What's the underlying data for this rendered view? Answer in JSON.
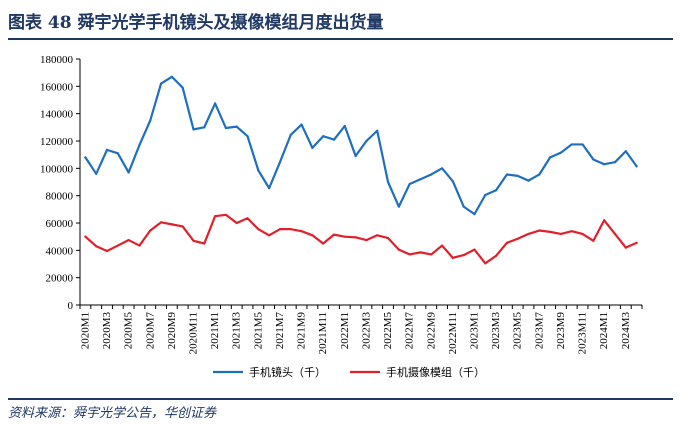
{
  "figure": {
    "title": "图表 48  舜宇光学手机镜头及摄像模组月度出货量",
    "source": "资料来源：舜宇光学公告，华创证券"
  },
  "chart_data": {
    "type": "line",
    "title": "",
    "xlabel": "",
    "ylabel": "",
    "ylim": [
      0,
      180000
    ],
    "yticks": [
      0,
      20000,
      40000,
      60000,
      80000,
      100000,
      120000,
      140000,
      160000,
      180000
    ],
    "grid": false,
    "legend_position": "bottom",
    "x": [
      "2020M1",
      "2020M2",
      "2020M3",
      "2020M4",
      "2020M5",
      "2020M6",
      "2020M7",
      "2020M8",
      "2020M9",
      "2020M10",
      "2020M11",
      "2020M12",
      "2021M1",
      "2021M2",
      "2021M3",
      "2021M4",
      "2021M5",
      "2021M6",
      "2021M7",
      "2021M8",
      "2021M9",
      "2021M10",
      "2021M11",
      "2021M12",
      "2022M1",
      "2022M2",
      "2022M3",
      "2022M4",
      "2022M5",
      "2022M6",
      "2022M7",
      "2022M8",
      "2022M9",
      "2022M10",
      "2022M11",
      "2022M12",
      "2023M1",
      "2023M2",
      "2023M3",
      "2023M4",
      "2023M5",
      "2023M6",
      "2023M7",
      "2023M8",
      "2023M9",
      "2023M10",
      "2023M11",
      "2023M12",
      "2024M1",
      "2024M2",
      "2024M3",
      "2024M4"
    ],
    "x_tick_labels": [
      "2020M1",
      "2020M3",
      "2020M5",
      "2020M7",
      "2020M9",
      "2020M11",
      "2021M1",
      "2021M3",
      "2021M5",
      "2021M7",
      "2021M9",
      "2021M11",
      "2022M1",
      "2022M3",
      "2022M5",
      "2022M7",
      "2022M9",
      "2022M11",
      "2023M1",
      "2023M3",
      "2023M5",
      "2023M7",
      "2023M9",
      "2023M11",
      "2024M1",
      "2024M3"
    ],
    "series": [
      {
        "name": "手机镜头（千）",
        "color": "#1f6fbf",
        "values": [
          108000,
          96000,
          113500,
          111000,
          97000,
          117000,
          135000,
          162000,
          167000,
          159000,
          128500,
          130000,
          147500,
          129500,
          130500,
          123500,
          98500,
          85500,
          104500,
          124500,
          132000,
          115000,
          123500,
          121000,
          131000,
          109000,
          120000,
          127500,
          90000,
          72000,
          88500,
          92000,
          95500,
          100000,
          90500,
          72000,
          66500,
          80500,
          84000,
          95500,
          94500,
          91000,
          95500,
          108000,
          111500,
          117500,
          117500,
          106500,
          103000,
          104500,
          112500,
          101500
        ]
      },
      {
        "name": "手机摄像模组（千）",
        "color": "#e0202b",
        "values": [
          50000,
          43000,
          39500,
          43500,
          47500,
          43500,
          54500,
          60500,
          59000,
          57500,
          47000,
          45000,
          65000,
          66000,
          60000,
          63500,
          55500,
          51000,
          55500,
          55500,
          54000,
          51000,
          45000,
          51500,
          50000,
          49500,
          47500,
          51000,
          49000,
          40500,
          37000,
          38500,
          37000,
          43500,
          34500,
          36500,
          40500,
          30500,
          36000,
          45500,
          48500,
          52000,
          54500,
          53500,
          52000,
          54000,
          52000,
          47000,
          62000,
          52000,
          42000,
          45500
        ]
      }
    ]
  }
}
